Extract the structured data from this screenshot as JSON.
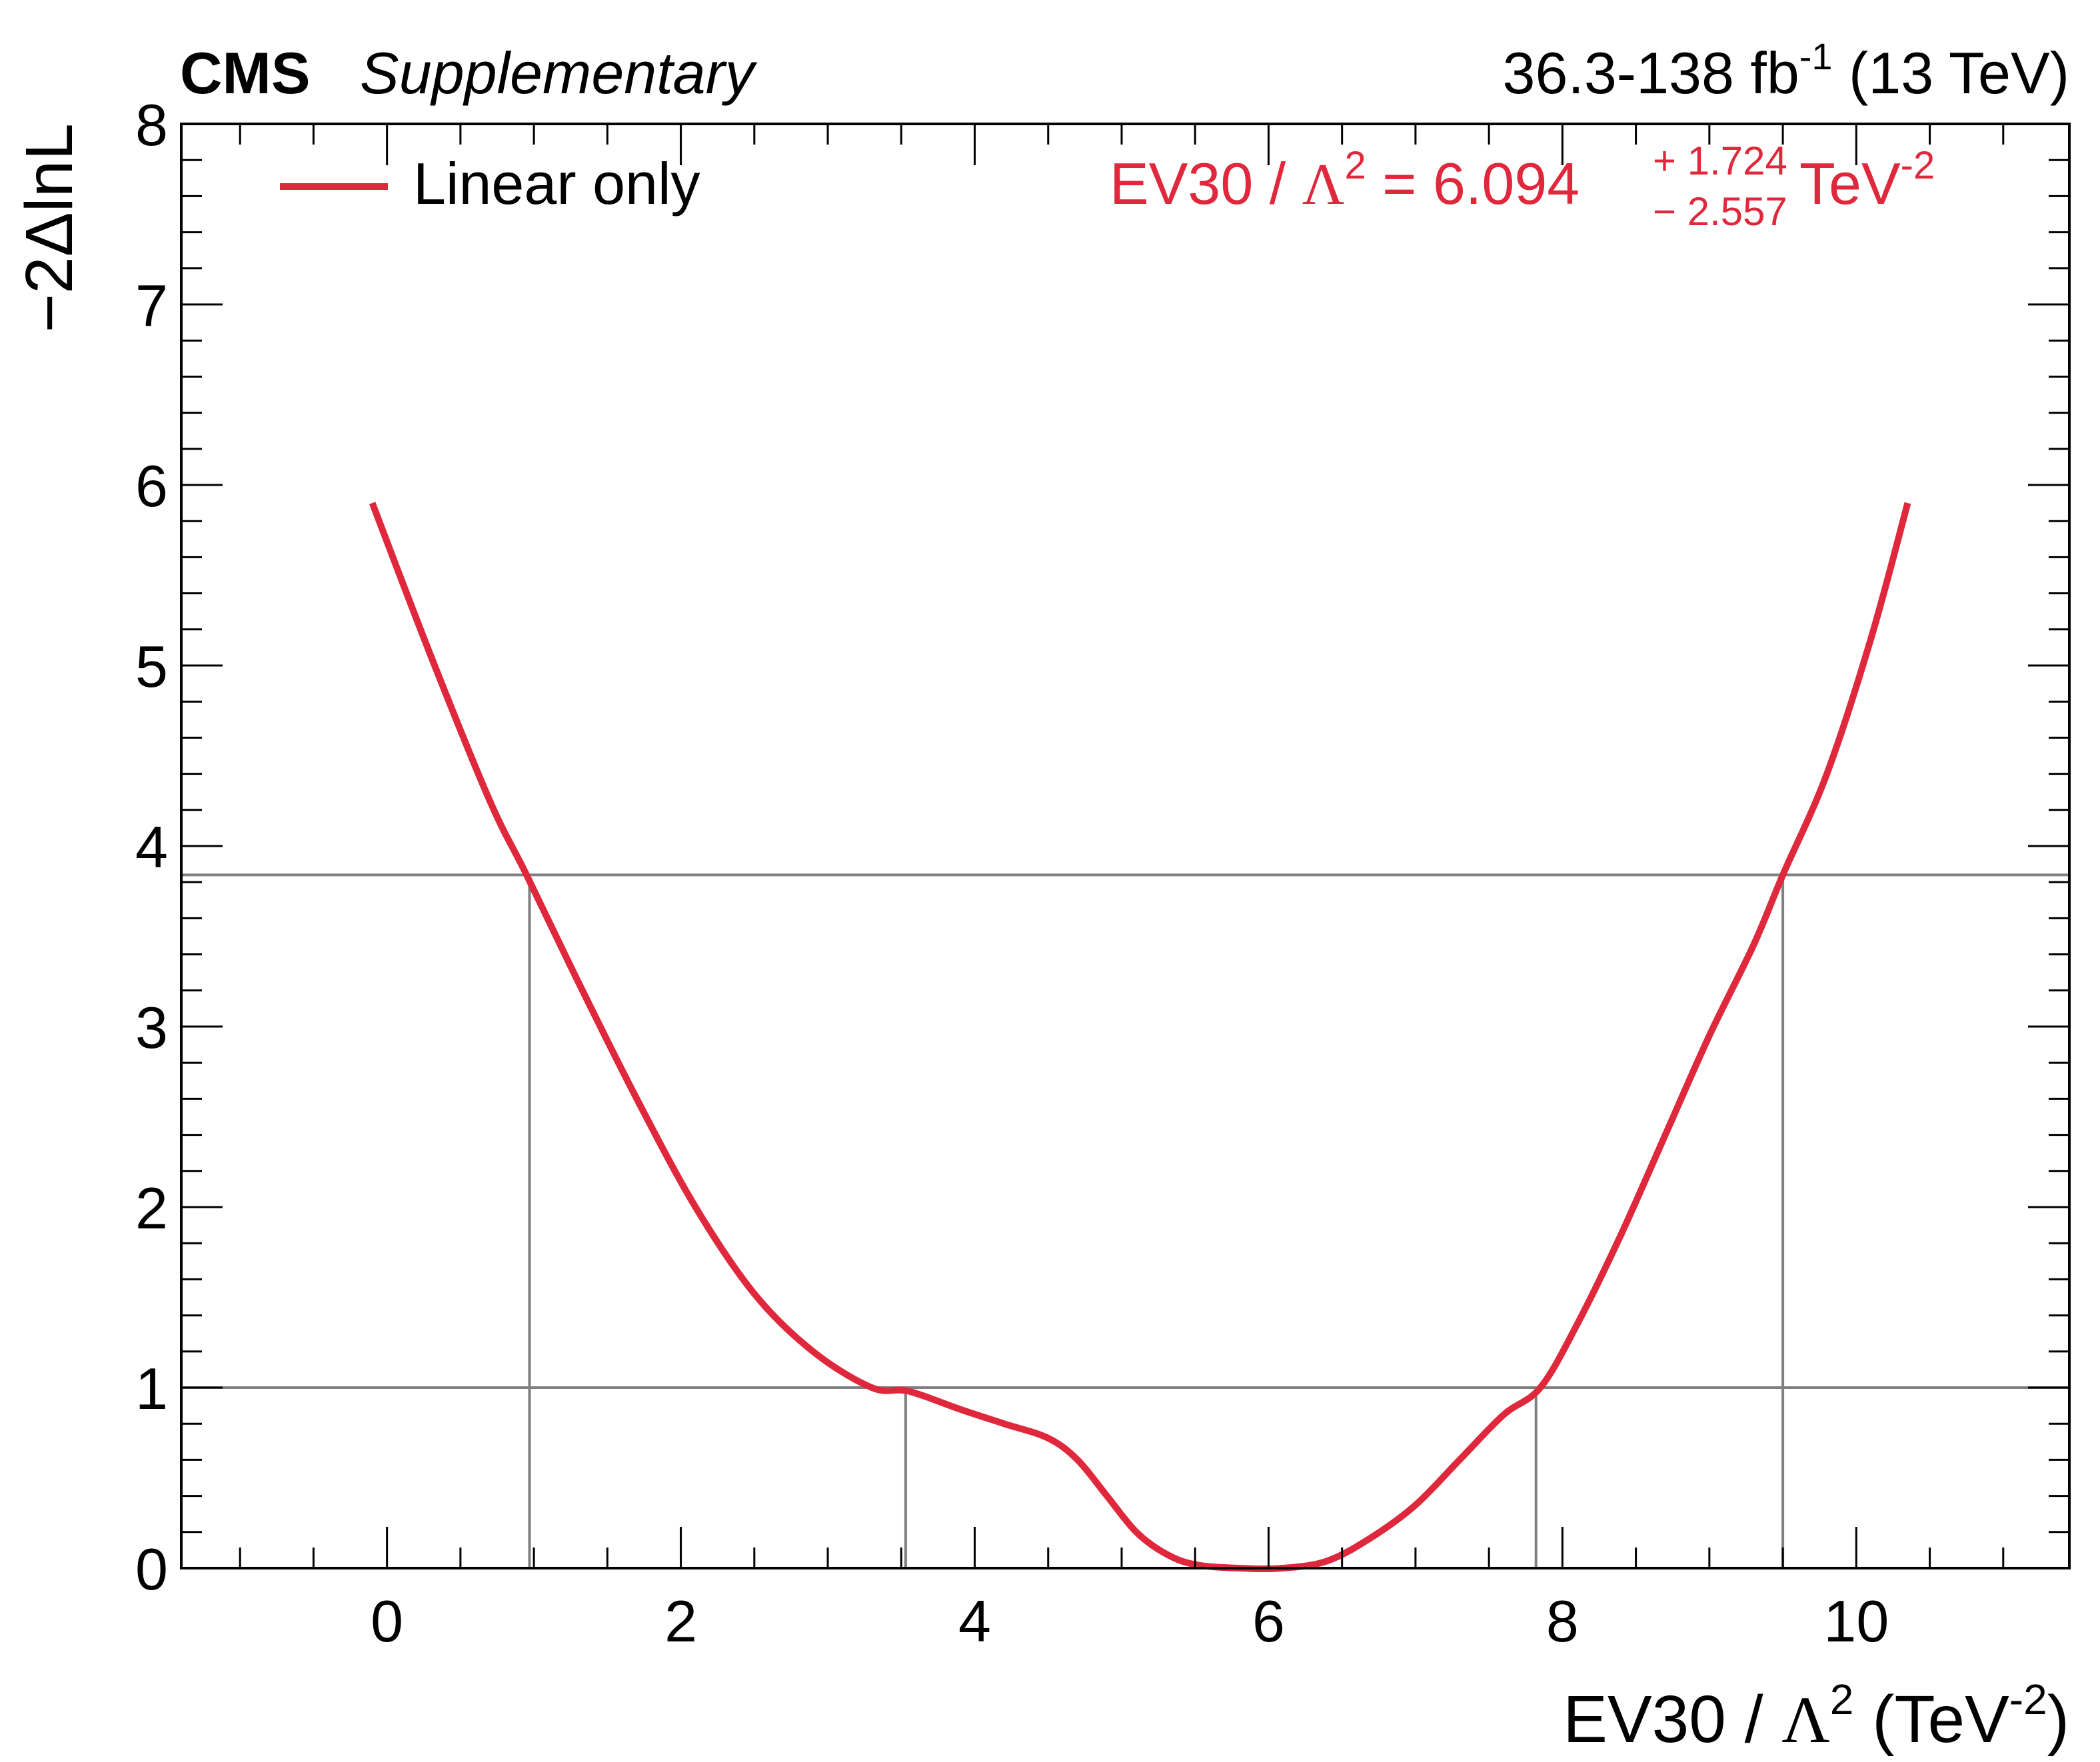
{
  "header": {
    "experiment": "CMS",
    "label": "Supplementary",
    "lumi_prefix": "36.3-138 fb",
    "lumi_sup": "-1",
    "energy": " (13 TeV)"
  },
  "legend": {
    "entry": "Linear only",
    "placement": "top-left"
  },
  "result": {
    "lhs": "EV30 / ",
    "lambda": "Λ",
    "lambda_sup": "2",
    "eq": " = 6.094",
    "up": "+ 1.724",
    "down": "− 2.557",
    "unit": " TeV",
    "unit_sup": "-2"
  },
  "axes": {
    "x": {
      "label_pre": "EV30 / ",
      "label_lambda": "Λ",
      "label_lambda_sup": "2",
      "label_unit": " (TeV",
      "label_unit_sup": "-2",
      "label_close": ")",
      "range": [
        -1.4,
        11.45
      ],
      "major_ticks": [
        0,
        2,
        4,
        6,
        8,
        10
      ],
      "tick_labels": [
        "0",
        "2",
        "4",
        "6",
        "8",
        "10"
      ],
      "minor_step": 0.5
    },
    "y": {
      "label": "−2ΔlnL",
      "range": [
        0,
        8
      ],
      "major_ticks": [
        0,
        1,
        2,
        3,
        4,
        5,
        6,
        7,
        8
      ],
      "tick_labels": [
        "0",
        "1",
        "2",
        "3",
        "4",
        "5",
        "6",
        "7",
        "8"
      ],
      "minor_step": 0.2
    },
    "grid": false
  },
  "colors": {
    "curve": "#e0283c",
    "reference_lines": "#808080",
    "text": "#000000",
    "result_text": "#e0283c"
  },
  "chart_data": {
    "type": "line",
    "series": [
      {
        "name": "Linear only",
        "x": [
          -0.1,
          0.3,
          0.7,
          0.95,
          1.3,
          1.7,
          2.1,
          2.5,
          2.9,
          3.3,
          3.55,
          3.9,
          4.2,
          4.5,
          4.7,
          4.9,
          5.1,
          5.3,
          5.5,
          5.8,
          6.1,
          6.4,
          6.7,
          7.0,
          7.3,
          7.6,
          7.85,
          8.1,
          8.4,
          8.7,
          9.0,
          9.3,
          9.5,
          9.8,
          10.1,
          10.35
        ],
        "y": [
          5.9,
          5.05,
          4.25,
          3.84,
          3.25,
          2.6,
          2.0,
          1.52,
          1.2,
          1.0,
          0.98,
          0.88,
          0.8,
          0.72,
          0.6,
          0.4,
          0.2,
          0.08,
          0.02,
          0.0,
          0.0,
          0.04,
          0.17,
          0.35,
          0.6,
          0.85,
          1.0,
          1.35,
          1.85,
          2.4,
          2.95,
          3.45,
          3.84,
          4.4,
          5.15,
          5.9
        ]
      }
    ],
    "reference_lines": {
      "horizontal": [
        1.0,
        3.84
      ],
      "vertical_at_1": [
        3.53,
        7.82
      ],
      "vertical_at_3_84": [
        0.97,
        9.5
      ]
    },
    "best_fit": 6.094,
    "xlim": [
      -1.4,
      11.45
    ],
    "ylim": [
      0,
      8
    ]
  }
}
